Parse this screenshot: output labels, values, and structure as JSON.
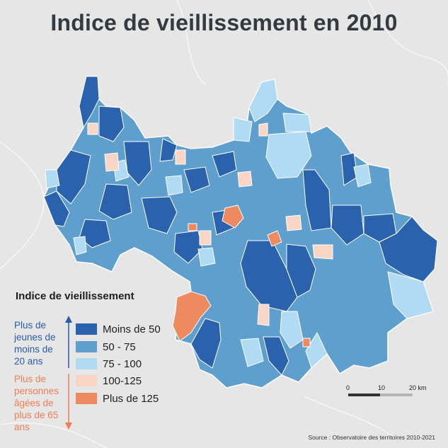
{
  "title": "Indice de vieillissement en 2010",
  "legend": {
    "title": "Indice de vieillissement",
    "young_note": "Plus de jeunes de moins de 20 ans",
    "old_note": "Plus de personnes âgées de plus de 65 ans",
    "classes": [
      {
        "label": "Moins de 50",
        "color": "#2a62ad"
      },
      {
        "label": "50 - 75",
        "color": "#5f9fce"
      },
      {
        "label": "75 - 100",
        "color": "#b0dbf3"
      },
      {
        "label": "100-125",
        "color": "#f8d5c4"
      },
      {
        "label": "Plus de 125",
        "color": "#ee8a60"
      }
    ]
  },
  "scale": {
    "ticks": [
      "0",
      "10",
      "20 km"
    ]
  },
  "source": "Source : Observatoire des territoires 2010-2021",
  "colors": {
    "background": "#e6e6e6",
    "title": "#333a40",
    "border": "#ffffff",
    "arrow_young": "#2a5ca8",
    "arrow_old": "#ee7f52"
  },
  "map": {
    "region_fill": "#5f9fce"
  }
}
